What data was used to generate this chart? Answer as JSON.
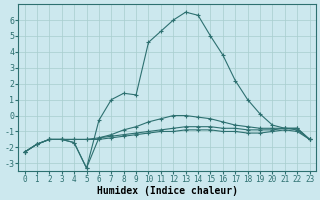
{
  "xlabel": "Humidex (Indice chaleur)",
  "background_color": "#cce8ee",
  "line_color": "#2d7070",
  "xlim": [
    -0.5,
    23.5
  ],
  "ylim": [
    -3.5,
    7.0
  ],
  "xticks": [
    0,
    1,
    2,
    3,
    4,
    5,
    6,
    7,
    8,
    9,
    10,
    11,
    12,
    13,
    14,
    15,
    16,
    17,
    18,
    19,
    20,
    21,
    22,
    23
  ],
  "yticks": [
    -3,
    -2,
    -1,
    0,
    1,
    2,
    3,
    4,
    5,
    6
  ],
  "series": [
    {
      "x": [
        0,
        1,
        2,
        3,
        4,
        5,
        6,
        7,
        8,
        9,
        10,
        11,
        12,
        13,
        14,
        15,
        16,
        17,
        18,
        19,
        20,
        21,
        22,
        23
      ],
      "y": [
        -2.3,
        -1.8,
        -1.5,
        -1.5,
        -1.7,
        -3.3,
        -0.3,
        1.0,
        1.4,
        1.3,
        4.6,
        5.3,
        6.0,
        6.5,
        6.3,
        5.0,
        3.8,
        2.2,
        1.0,
        0.1,
        -0.6,
        -0.8,
        -0.8,
        -1.5
      ],
      "marker": "+"
    },
    {
      "x": [
        0,
        1,
        2,
        3,
        4,
        5,
        6,
        7,
        8,
        9,
        10,
        11,
        12,
        13,
        14,
        15,
        16,
        17,
        18,
        19,
        20,
        21,
        22,
        23
      ],
      "y": [
        -2.3,
        -1.8,
        -1.5,
        -1.5,
        -1.5,
        -1.5,
        -1.4,
        -1.3,
        -1.2,
        -1.1,
        -1.0,
        -0.9,
        -0.8,
        -0.7,
        -0.7,
        -0.7,
        -0.8,
        -0.8,
        -0.9,
        -0.9,
        -0.9,
        -0.8,
        -0.8,
        -1.5
      ],
      "marker": "+"
    },
    {
      "x": [
        0,
        1,
        2,
        3,
        4,
        5,
        6,
        7,
        8,
        9,
        10,
        11,
        12,
        13,
        14,
        15,
        16,
        17,
        18,
        19,
        20,
        21,
        22,
        23
      ],
      "y": [
        -2.3,
        -1.8,
        -1.5,
        -1.5,
        -1.5,
        -1.5,
        -1.5,
        -1.4,
        -1.3,
        -1.2,
        -1.1,
        -1.0,
        -1.0,
        -0.9,
        -0.9,
        -0.9,
        -1.0,
        -1.0,
        -1.1,
        -1.1,
        -1.0,
        -0.9,
        -1.0,
        -1.5
      ],
      "marker": "+"
    },
    {
      "x": [
        0,
        1,
        2,
        3,
        4,
        5,
        6,
        7,
        8,
        9,
        10,
        11,
        12,
        13,
        14,
        15,
        16,
        17,
        18,
        19,
        20,
        21,
        22,
        23
      ],
      "y": [
        -2.3,
        -1.8,
        -1.5,
        -1.5,
        -1.7,
        -3.3,
        -1.4,
        -1.2,
        -0.9,
        -0.7,
        -0.4,
        -0.2,
        0.0,
        0.0,
        -0.1,
        -0.2,
        -0.4,
        -0.6,
        -0.7,
        -0.8,
        -0.8,
        -0.8,
        -0.9,
        -1.5
      ],
      "marker": "+"
    }
  ]
}
